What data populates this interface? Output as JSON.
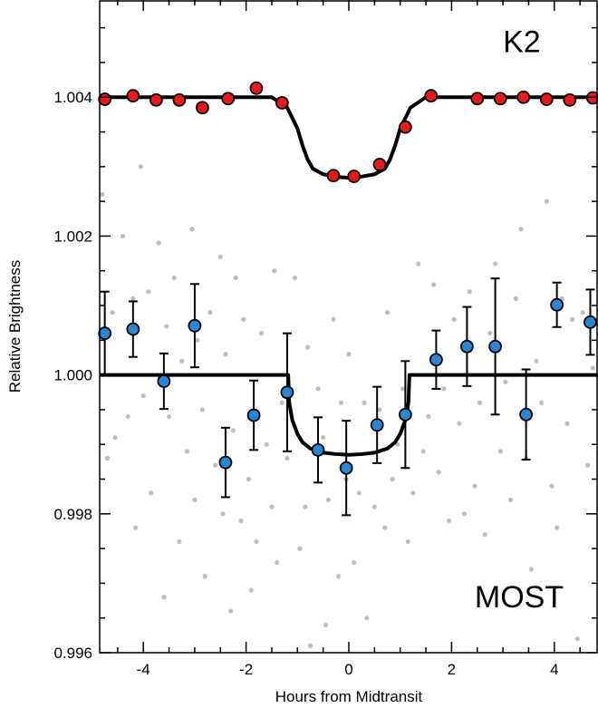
{
  "chart_data": {
    "type": "scatter",
    "title": "",
    "xlabel": "Hours from Midtransit",
    "ylabel": "Relative Brightness",
    "xlim": [
      -4.85,
      4.85
    ],
    "ylim": [
      0.996,
      1.0054
    ],
    "xticks": [
      -4,
      -2,
      0,
      2,
      4
    ],
    "xtick_labels": [
      "-4",
      "-2",
      "0",
      "2",
      "4"
    ],
    "yticks": [
      0.996,
      0.998,
      1.0,
      1.002,
      1.004
    ],
    "ytick_labels": [
      "0.996",
      "0.998",
      "1.000",
      "1.002",
      "1.004"
    ],
    "grid": false,
    "annotations": [
      {
        "text": "K2",
        "x": 3.0,
        "y": 1.00465
      },
      {
        "text": "MOST",
        "x": 2.45,
        "y": 0.99665
      }
    ],
    "colors": {
      "k2": "#e8191b",
      "most": "#2a86d4",
      "raw": "#bfbfbf",
      "model": "#000000"
    },
    "series": [
      {
        "name": "K2",
        "marker": "circle",
        "x": [
          -4.75,
          -4.2,
          -3.75,
          -3.3,
          -2.85,
          -2.35,
          -1.8,
          -1.3,
          -0.3,
          0.1,
          0.6,
          1.1,
          1.6,
          2.5,
          2.95,
          3.4,
          3.85,
          4.3,
          4.75
        ],
        "y": [
          1.00397,
          1.00402,
          1.00396,
          1.00396,
          1.00385,
          1.00398,
          1.00413,
          1.00392,
          1.00287,
          1.00286,
          1.00303,
          1.00357,
          1.00402,
          1.00398,
          1.00398,
          1.004,
          1.00397,
          1.00396,
          1.00399
        ]
      },
      {
        "name": "MOST",
        "marker": "circle",
        "x": [
          -4.75,
          -4.2,
          -3.6,
          -3.0,
          -2.4,
          -1.85,
          -1.2,
          -0.6,
          -0.05,
          0.55,
          1.1,
          1.7,
          2.3,
          2.85,
          3.45,
          4.05,
          4.7
        ],
        "y": [
          1.0006,
          1.00066,
          0.99991,
          1.00071,
          0.99874,
          0.99942,
          0.99975,
          0.99892,
          0.99866,
          0.99928,
          0.99943,
          1.00022,
          1.00041,
          1.00041,
          0.99943,
          1.00101,
          1.00076
        ],
        "yerr": [
          0.0006,
          0.0004,
          0.0004,
          0.0006,
          0.0005,
          0.0005,
          0.00085,
          0.00047,
          0.00068,
          0.00055,
          0.00077,
          0.00042,
          0.00057,
          0.00098,
          0.00065,
          0.00032,
          0.00047
        ]
      },
      {
        "name": "MOST raw",
        "marker": "dot",
        "x": [
          -4.8,
          -4.7,
          -4.6,
          -4.55,
          -4.4,
          -4.3,
          -4.2,
          -4.15,
          -4.05,
          -4.0,
          -3.9,
          -3.85,
          -3.7,
          -3.6,
          -3.55,
          -3.5,
          -3.4,
          -3.3,
          -3.25,
          -3.15,
          -3.05,
          -3.0,
          -2.95,
          -2.85,
          -2.8,
          -2.7,
          -2.6,
          -2.5,
          -2.45,
          -2.4,
          -2.3,
          -2.25,
          -2.2,
          -2.1,
          -2.05,
          -1.95,
          -1.9,
          -1.8,
          -1.7,
          -1.6,
          -1.5,
          -1.45,
          -1.4,
          -1.3,
          -1.2,
          -1.05,
          -0.95,
          -0.85,
          -0.8,
          -0.75,
          -0.6,
          -0.5,
          -0.45,
          -0.4,
          -0.3,
          -0.2,
          -0.15,
          -0.05,
          0.0,
          0.1,
          0.2,
          0.3,
          0.35,
          0.5,
          0.6,
          0.7,
          0.75,
          0.85,
          0.95,
          1.05,
          1.15,
          1.25,
          1.35,
          1.45,
          1.55,
          1.65,
          1.75,
          1.85,
          1.95,
          2.05,
          2.15,
          2.25,
          2.35,
          2.45,
          2.55,
          2.65,
          2.75,
          2.85,
          2.95,
          3.05,
          3.15,
          3.25,
          3.35,
          3.45,
          3.55,
          3.65,
          3.75,
          3.85,
          3.95,
          4.05,
          4.15,
          4.25,
          4.35,
          4.45,
          4.55,
          4.65,
          4.75
        ],
        "y": [
          1.0026,
          0.9988,
          1.0009,
          0.9991,
          1.002,
          0.9994,
          1.0011,
          0.9978,
          1.003,
          0.9997,
          1.0012,
          0.9983,
          1.0019,
          0.9968,
          1.0007,
          0.9994,
          1.0014,
          0.9976,
          1.0002,
          0.9989,
          1.0021,
          0.9982,
          1.0005,
          0.9995,
          0.9971,
          1.0009,
          0.9987,
          1.0017,
          0.998,
          1.0003,
          0.9966,
          0.9992,
          1.0014,
          0.9979,
          1.0008,
          0.9985,
          0.9969,
          0.9976,
          1.0006,
          0.999,
          0.9981,
          1.0015,
          0.9973,
          0.9996,
          0.9988,
          1.0014,
          0.9975,
          0.9981,
          1.0004,
          0.9961,
          0.9998,
          0.9991,
          0.9964,
          0.9982,
          1.0008,
          0.9971,
          0.9996,
          0.9985,
          1.0003,
          0.9973,
          0.9983,
          0.9996,
          0.9965,
          0.9981,
          0.9995,
          0.9978,
          1.0009,
          0.9985,
          0.999,
          0.9998,
          0.9976,
          0.9983,
          1.0016,
          0.9989,
          0.9994,
          1.0013,
          0.9986,
          0.9998,
          0.9979,
          1.0008,
          0.9993,
          0.998,
          1.0012,
          0.9984,
          0.9996,
          0.9977,
          1.0006,
          1.0016,
          0.9989,
          0.9999,
          0.9982,
          1.0011,
          1.0021,
          0.9988,
          0.9972,
          1.0002,
          0.9996,
          1.0025,
          0.9984,
          0.9978,
          1.0011,
          0.9993,
          1.0008,
          0.9962,
          1.0009,
          0.9987,
          1.0001
        ]
      }
    ],
    "models": [
      {
        "name": "K2 model",
        "x": [
          -4.85,
          -1.5,
          -1.2,
          -1.0,
          -0.9,
          -0.8,
          -0.7,
          -0.5,
          -0.2,
          0.0,
          0.2,
          0.5,
          0.7,
          0.8,
          0.9,
          1.0,
          1.2,
          1.5,
          4.85
        ],
        "y": [
          1.004,
          1.004,
          1.00385,
          1.00355,
          1.0033,
          1.0031,
          1.00297,
          1.00289,
          1.00285,
          1.00284,
          1.00285,
          1.00289,
          1.00297,
          1.0031,
          1.0033,
          1.00355,
          1.00385,
          1.004,
          1.004
        ]
      },
      {
        "name": "MOST model",
        "x": [
          -4.85,
          -1.18,
          -1.16,
          -1.1,
          -1.0,
          -0.9,
          -0.75,
          -0.5,
          -0.25,
          0.0,
          0.25,
          0.5,
          0.75,
          0.9,
          1.0,
          1.1,
          1.16,
          1.18,
          4.85
        ],
        "y": [
          1.0,
          1.0,
          0.9996,
          0.99935,
          0.99915,
          0.99903,
          0.99894,
          0.99888,
          0.99886,
          0.99885,
          0.99886,
          0.99888,
          0.99894,
          0.99903,
          0.99915,
          0.99935,
          0.9996,
          1.0,
          1.0
        ]
      }
    ]
  }
}
